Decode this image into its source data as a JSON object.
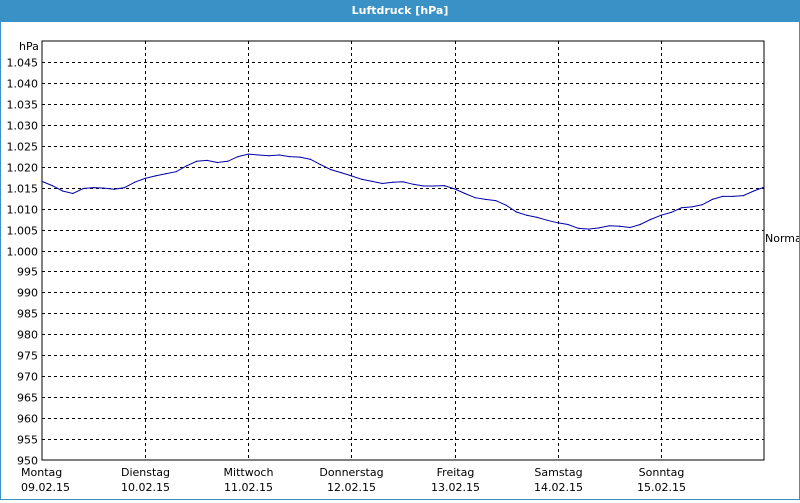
{
  "window": {
    "title": "Luftdruck [hPa]"
  },
  "colors": {
    "titlebar": "#3a91c5",
    "line": "#0000aa",
    "grid": "#000000"
  },
  "chart_data": {
    "type": "line",
    "title": "Luftdruck [hPa]",
    "ylabel": "hPa",
    "ylim": [
      950,
      1050
    ],
    "yticks": [
      {
        "v": 1045,
        "label": "1.045"
      },
      {
        "v": 1040,
        "label": "1.040"
      },
      {
        "v": 1035,
        "label": "1.035"
      },
      {
        "v": 1030,
        "label": "1.030"
      },
      {
        "v": 1025,
        "label": "1.025"
      },
      {
        "v": 1020,
        "label": "1.020"
      },
      {
        "v": 1015,
        "label": "1.015"
      },
      {
        "v": 1010,
        "label": "1.010"
      },
      {
        "v": 1005,
        "label": "1.005"
      },
      {
        "v": 1000,
        "label": "1.000"
      },
      {
        "v": 995,
        "label": "995"
      },
      {
        "v": 990,
        "label": "990"
      },
      {
        "v": 985,
        "label": "985"
      },
      {
        "v": 980,
        "label": "980"
      },
      {
        "v": 975,
        "label": "975"
      },
      {
        "v": 970,
        "label": "970"
      },
      {
        "v": 965,
        "label": "965"
      },
      {
        "v": 960,
        "label": "960"
      },
      {
        "v": 955,
        "label": "955"
      },
      {
        "v": 950,
        "label": "950"
      }
    ],
    "xlim": [
      0,
      7
    ],
    "xticks": [
      {
        "v": 0,
        "day": "Montag",
        "date": "09.02.15"
      },
      {
        "v": 1,
        "day": "Dienstag",
        "date": "10.02.15"
      },
      {
        "v": 2,
        "day": "Mittwoch",
        "date": "11.02.15"
      },
      {
        "v": 3,
        "day": "Donnerstag",
        "date": "12.02.15"
      },
      {
        "v": 4,
        "day": "Freitag",
        "date": "13.02.15"
      },
      {
        "v": 5,
        "day": "Samstag",
        "date": "14.02.15"
      },
      {
        "v": 6,
        "day": "Sonntag",
        "date": "15.02.15"
      }
    ],
    "reference": {
      "label": "Normal",
      "value": 1003
    },
    "grid": true,
    "series": [
      {
        "x": [
          0,
          0.1,
          0.2,
          0.3,
          0.4,
          0.5,
          0.6,
          0.7,
          0.8,
          0.9,
          1.0,
          1.1,
          1.2,
          1.3,
          1.4,
          1.5,
          1.6,
          1.7,
          1.8,
          1.9,
          2.0,
          2.1,
          2.2,
          2.3,
          2.4,
          2.5,
          2.6,
          2.7,
          2.8,
          2.9,
          3.0,
          3.1,
          3.2,
          3.3,
          3.4,
          3.5,
          3.6,
          3.7,
          3.8,
          3.9,
          4.0,
          4.1,
          4.2,
          4.3,
          4.4,
          4.5,
          4.6,
          4.7,
          4.8,
          4.9,
          5.0,
          5.1,
          5.2,
          5.3,
          5.4,
          5.5,
          5.6,
          5.7,
          5.8,
          5.9,
          6.0,
          6.1,
          6.2,
          6.3,
          6.4,
          6.5,
          6.6,
          6.7,
          6.8,
          6.9,
          6.99
        ],
        "values": [
          1016.5,
          1015.5,
          1014.2,
          1013.6,
          1014.8,
          1015.0,
          1014.9,
          1014.6,
          1015.0,
          1016.3,
          1017.2,
          1017.8,
          1018.3,
          1018.8,
          1020.2,
          1021.3,
          1021.5,
          1021.0,
          1021.3,
          1022.4,
          1023.0,
          1022.8,
          1022.6,
          1022.8,
          1022.4,
          1022.3,
          1021.8,
          1020.5,
          1019.3,
          1018.6,
          1017.8,
          1017.0,
          1016.5,
          1016.0,
          1016.3,
          1016.4,
          1015.8,
          1015.4,
          1015.4,
          1015.5,
          1014.7,
          1013.6,
          1012.6,
          1012.2,
          1011.9,
          1010.8,
          1009.2,
          1008.4,
          1007.9,
          1007.2,
          1006.6,
          1006.2,
          1005.3,
          1005.1,
          1005.4,
          1005.9,
          1005.8,
          1005.5,
          1006.2,
          1007.4,
          1008.4,
          1009.1,
          1010.2,
          1010.4,
          1010.9,
          1012.2,
          1012.9,
          1012.9,
          1013.1,
          1014.2,
          1015.0
        ]
      }
    ]
  }
}
